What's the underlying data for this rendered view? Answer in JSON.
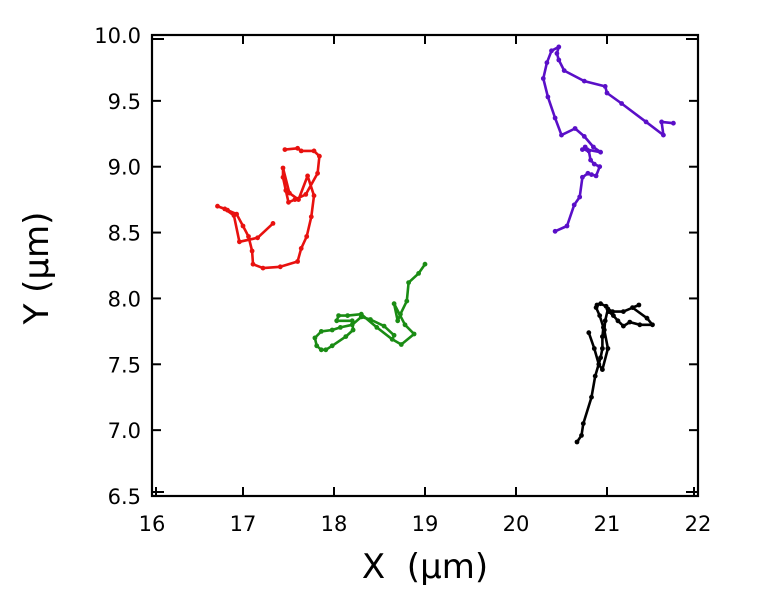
{
  "chart_data": {
    "type": "line",
    "title": "",
    "xlabel": "X  (µm)",
    "ylabel": "Y (µm)",
    "xlim": [
      16,
      22
    ],
    "ylim": [
      6.5,
      10.0
    ],
    "xticks": [
      16,
      17,
      18,
      19,
      20,
      21,
      22
    ],
    "xtick_labels": [
      "16",
      "17",
      "18",
      "19",
      "20",
      "21",
      "22"
    ],
    "yticks": [
      6.5,
      7.0,
      7.5,
      8.0,
      8.5,
      9.0,
      9.5,
      10.0
    ],
    "ytick_labels": [
      "6.5",
      "7.0",
      "7.5",
      "8.0",
      "8.5",
      "9.0",
      "9.5",
      "10.0"
    ],
    "grid": false,
    "legend": null,
    "markers": true,
    "series": [
      {
        "name": "trajectory-red",
        "color": "#e8110f",
        "x": [
          17.33,
          17.16,
          16.96,
          16.9,
          16.8,
          16.72,
          16.83,
          16.93,
          17.0,
          17.06,
          17.1,
          17.11,
          17.22,
          17.41,
          17.6,
          17.64,
          17.7,
          17.75,
          17.78,
          17.71,
          17.61,
          17.51,
          17.44,
          17.44,
          17.47,
          17.5,
          17.57,
          17.69,
          17.82,
          17.84,
          17.78,
          17.64,
          17.6,
          17.46
        ],
        "y": [
          8.57,
          8.46,
          8.43,
          8.63,
          8.68,
          8.7,
          8.67,
          8.64,
          8.55,
          8.47,
          8.36,
          8.26,
          8.23,
          8.24,
          8.28,
          8.38,
          8.47,
          8.62,
          8.78,
          8.93,
          8.75,
          8.8,
          8.99,
          8.92,
          8.82,
          8.73,
          8.75,
          8.79,
          8.95,
          9.08,
          9.12,
          9.12,
          9.14,
          9.13
        ]
      },
      {
        "name": "trajectory-green",
        "color": "#1a8c14",
        "x": [
          19.0,
          18.93,
          18.82,
          18.8,
          18.73,
          18.7,
          18.66,
          18.78,
          18.88,
          18.74,
          18.64,
          18.47,
          18.3,
          18.15,
          18.05,
          18.03,
          18.2,
          18.21,
          18.13,
          17.98,
          17.91,
          17.86,
          17.81,
          17.79,
          17.86,
          17.98,
          18.07,
          18.2,
          18.3,
          18.4,
          18.55,
          18.66
        ],
        "y": [
          8.26,
          8.19,
          8.12,
          7.98,
          7.88,
          7.83,
          7.96,
          7.8,
          7.73,
          7.65,
          7.69,
          7.78,
          7.88,
          7.87,
          7.87,
          7.83,
          7.83,
          7.76,
          7.71,
          7.64,
          7.61,
          7.61,
          7.64,
          7.7,
          7.75,
          7.76,
          7.78,
          7.8,
          7.86,
          7.84,
          7.79,
          7.72
        ]
      },
      {
        "name": "trajectory-purple",
        "color": "#5a0fc8",
        "x": [
          20.43,
          20.56,
          20.64,
          20.7,
          20.73,
          20.79,
          20.83,
          20.88,
          20.92,
          20.86,
          20.82,
          20.8,
          20.76,
          20.73,
          20.78,
          20.93,
          20.85,
          20.75,
          20.65,
          20.5,
          20.43,
          20.35,
          20.3,
          20.34,
          20.39,
          20.47,
          20.45,
          20.47,
          20.53,
          20.75,
          20.98,
          21.0,
          21.16,
          21.43,
          21.62,
          21.6,
          21.73
        ],
        "y": [
          8.51,
          8.55,
          8.71,
          8.77,
          8.92,
          8.95,
          8.94,
          8.93,
          9.0,
          9.02,
          9.05,
          9.12,
          9.15,
          9.13,
          9.13,
          9.11,
          9.15,
          9.23,
          9.29,
          9.24,
          9.37,
          9.53,
          9.67,
          9.79,
          9.88,
          9.91,
          9.86,
          9.81,
          9.73,
          9.65,
          9.61,
          9.56,
          9.48,
          9.34,
          9.24,
          9.34,
          9.33
        ]
      },
      {
        "name": "trajectory-black",
        "color": "#000000",
        "x": [
          20.67,
          20.72,
          20.74,
          20.83,
          20.87,
          20.93,
          20.95,
          20.95,
          20.96,
          20.92,
          20.88,
          20.89,
          20.93,
          20.99,
          21.02,
          21.07,
          21.12,
          21.18,
          21.25,
          21.36,
          21.5,
          21.44,
          21.28,
          21.35,
          21.18,
          21.06,
          21.01,
          20.98,
          20.97,
          21.01,
          20.95,
          20.91,
          20.86,
          20.8
        ],
        "y": [
          6.91,
          6.96,
          7.05,
          7.25,
          7.41,
          7.55,
          7.62,
          7.71,
          7.78,
          7.87,
          7.93,
          7.95,
          7.96,
          7.94,
          7.9,
          7.87,
          7.83,
          7.79,
          7.82,
          7.8,
          7.8,
          7.85,
          7.93,
          7.95,
          7.9,
          7.9,
          7.92,
          7.83,
          7.76,
          7.62,
          7.46,
          7.5,
          7.62,
          7.74
        ]
      }
    ]
  },
  "axes": {
    "x_title": "X  (µm)",
    "y_title": "Y (µm)"
  }
}
